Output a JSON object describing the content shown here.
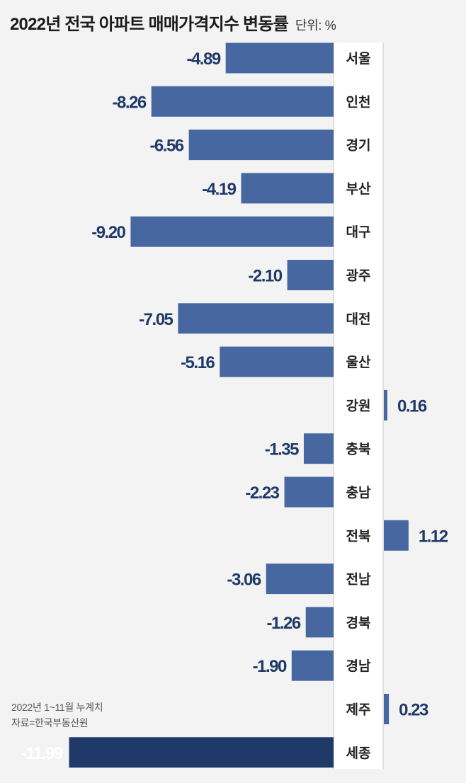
{
  "title": "2022년 전국 아파트 매매가격지수 변동률",
  "unit": "단위: %",
  "note_period": "2022년 1~11월 누계치",
  "note_source": "자료=한국부동산원",
  "colors": {
    "bar": "#4767a1",
    "highlight_bar": "#1f3968",
    "value_text": "#1f3968",
    "highlight_value_text": "#ffffff",
    "category_text": "#222222",
    "axis_line": "#c8c8c8",
    "label_column": "#ffffff"
  },
  "chart_data": {
    "type": "bar",
    "orientation": "horizontal",
    "title": "2022년 전국 아파트 매매가격지수 변동률",
    "unit": "%",
    "categories": [
      "서울",
      "인천",
      "경기",
      "부산",
      "대구",
      "광주",
      "대전",
      "울산",
      "강원",
      "충북",
      "충남",
      "전북",
      "전남",
      "경북",
      "경남",
      "제주",
      "세종"
    ],
    "values": [
      -4.89,
      -8.26,
      -6.56,
      -4.19,
      -9.2,
      -2.1,
      -7.05,
      -5.16,
      0.16,
      -1.35,
      -2.23,
      1.12,
      -3.06,
      -1.26,
      -1.9,
      0.23,
      -11.99
    ],
    "value_labels": [
      "-4.89",
      "-8.26",
      "-6.56",
      "-4.19",
      "-9.20",
      "-2.10",
      "-7.05",
      "-5.16",
      "0.16",
      "-1.35",
      "-2.23",
      "1.12",
      "-3.06",
      "-1.26",
      "-1.90",
      "0.23",
      "-11.99"
    ],
    "highlight_category": "세종",
    "xlim": [
      -12,
      2
    ],
    "grid": false,
    "legend": "none"
  }
}
